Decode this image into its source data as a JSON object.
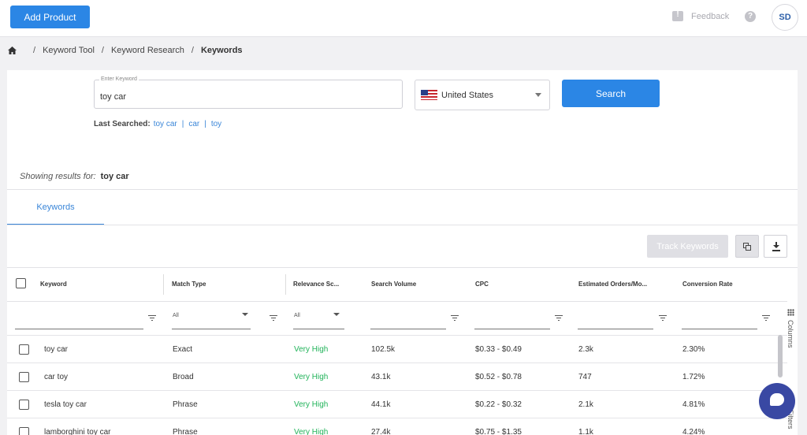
{
  "header": {
    "add_product": "Add Product",
    "feedback": "Feedback",
    "help_glyph": "?",
    "avatar_initials": "SD"
  },
  "breadcrumb": {
    "items": [
      "Keyword Tool",
      "Keyword Research"
    ],
    "current": "Keywords",
    "separator": "/"
  },
  "search": {
    "keyword_label": "Enter Keyword",
    "keyword_value": "toy car",
    "country": "United States",
    "search_button": "Search",
    "last_searched_label": "Last Searched:",
    "last_searched": [
      "toy car",
      "car",
      "toy"
    ]
  },
  "results": {
    "showing_prefix": "Showing results for:",
    "term": "toy car"
  },
  "tabs": [
    {
      "label": "Keywords",
      "active": true
    }
  ],
  "toolbar": {
    "track_keywords": "Track Keywords",
    "copy_icon": "copy-icon",
    "download_icon": "download-icon"
  },
  "table": {
    "columns": [
      "Keyword",
      "Match Type",
      "Relevance Sc...",
      "Search Volume",
      "CPC",
      "Estimated Orders/Mo...",
      "Conversion Rate"
    ],
    "filters": {
      "match_type": "All",
      "relevance": "All"
    },
    "rows": [
      {
        "keyword": "toy car",
        "match": "Exact",
        "relevance": "Very High",
        "volume": "102.5k",
        "cpc": "$0.33 - $0.49",
        "orders": "2.3k",
        "conversion": "2.30%"
      },
      {
        "keyword": "car toy",
        "match": "Broad",
        "relevance": "Very High",
        "volume": "43.1k",
        "cpc": "$0.52 - $0.78",
        "orders": "747",
        "conversion": "1.72%"
      },
      {
        "keyword": "tesla toy car",
        "match": "Phrase",
        "relevance": "Very High",
        "volume": "44.1k",
        "cpc": "$0.22 - $0.32",
        "orders": "2.1k",
        "conversion": "4.81%"
      },
      {
        "keyword": "lamborghini toy car",
        "match": "Phrase",
        "relevance": "Very High",
        "volume": "27.4k",
        "cpc": "$0.75 - $1.35",
        "orders": "1.1k",
        "conversion": "4.24%"
      }
    ]
  },
  "side_tools": {
    "columns": "Columns",
    "filters": "Filters"
  },
  "colors": {
    "primary": "#2b86e5",
    "relevance_high": "#21b35a",
    "chat": "#3948a3"
  }
}
